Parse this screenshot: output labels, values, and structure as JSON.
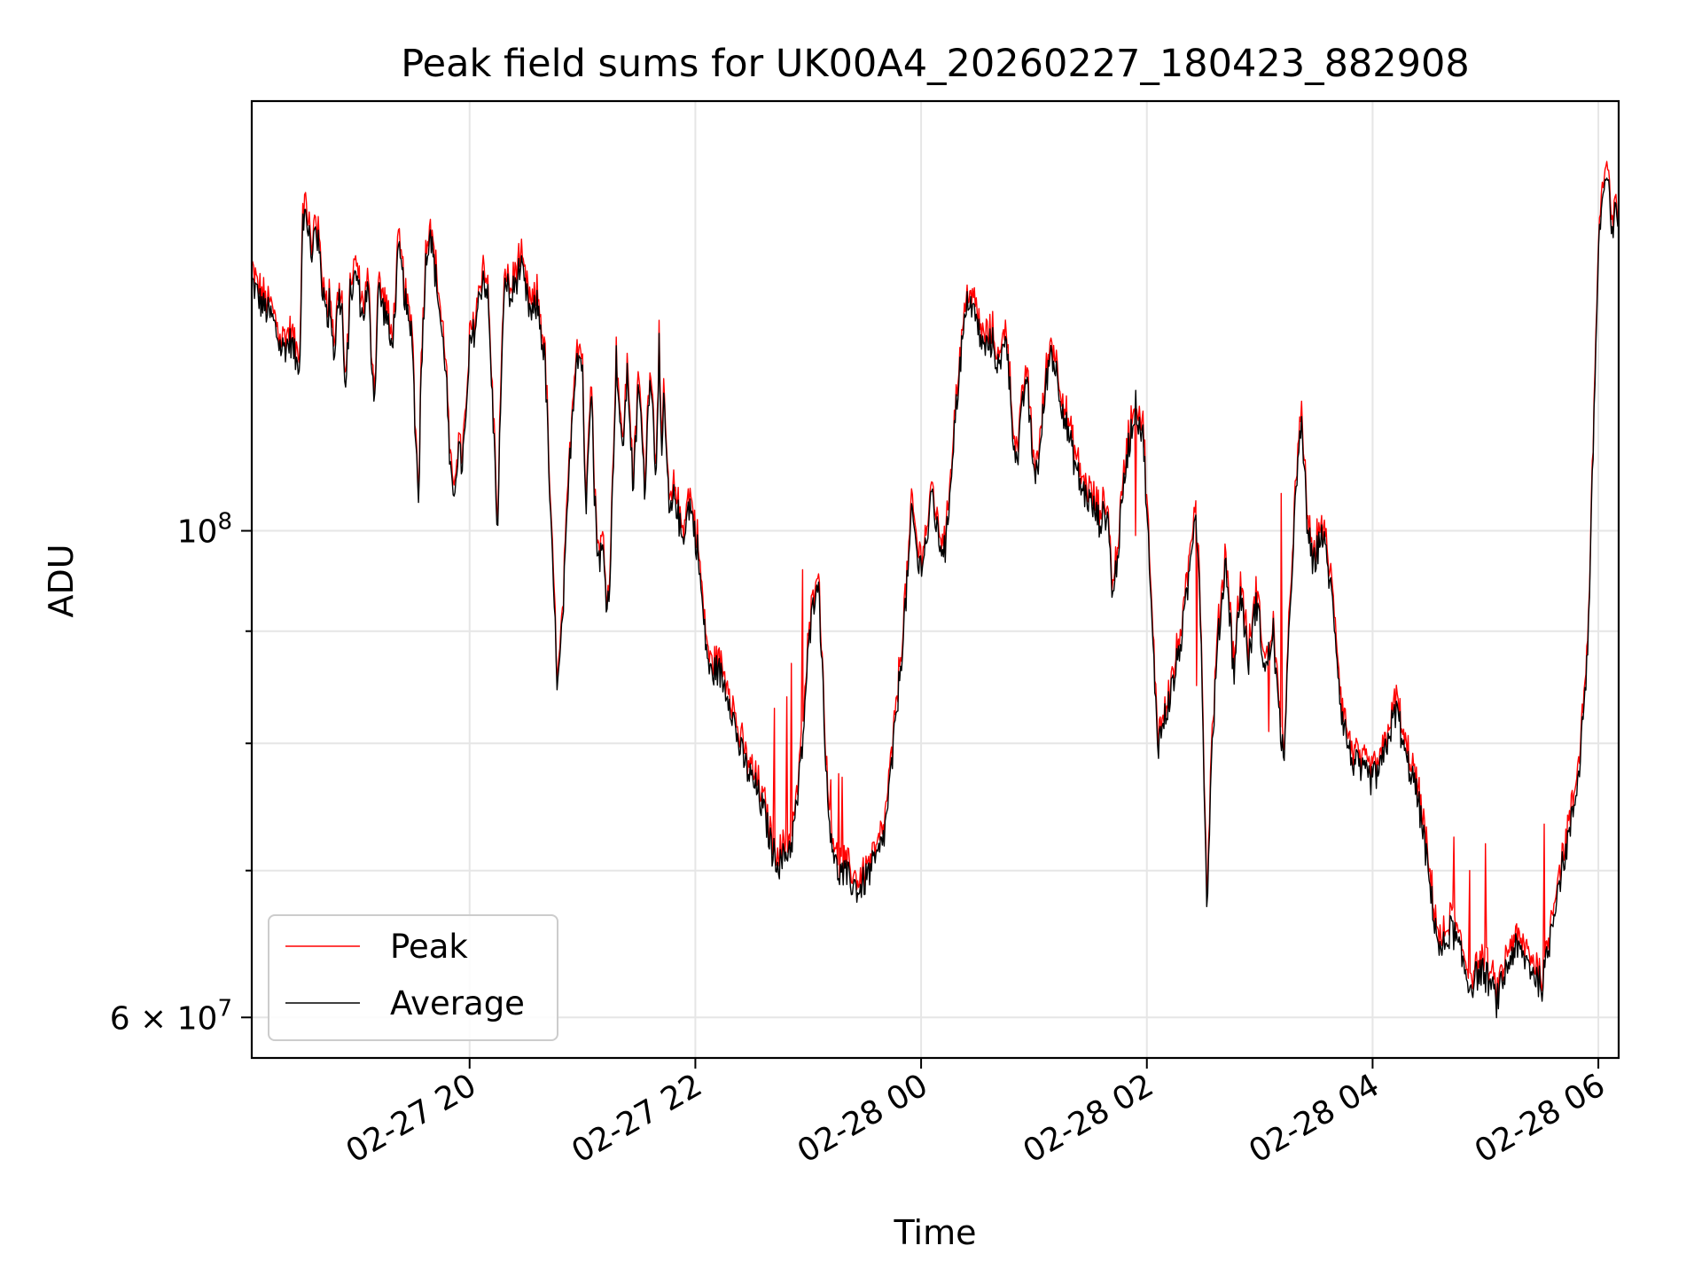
{
  "chart_data": {
    "type": "line",
    "title": "Peak field sums for UK00A4_20260227_180423_882908",
    "xlabel": "Time",
    "ylabel": "ADU",
    "yscale": "log",
    "xlim_hours": [
      18.07,
      30.18
    ],
    "ylim": [
      57500000,
      157000000
    ],
    "x_ticks": [
      {
        "hour": 20,
        "label": "02-27 20"
      },
      {
        "hour": 22,
        "label": "02-27 22"
      },
      {
        "hour": 24,
        "label": "02-28 00"
      },
      {
        "hour": 26,
        "label": "02-28 02"
      },
      {
        "hour": 28,
        "label": "02-28 04"
      },
      {
        "hour": 30,
        "label": "02-28 06"
      }
    ],
    "y_major_ticks": [
      {
        "value": 100000000,
        "base": "10",
        "exp": "8"
      },
      {
        "value": 60000000,
        "base": "6 × 10",
        "exp": "7"
      }
    ],
    "y_minor_ticks": [
      70000000,
      80000000,
      90000000
    ],
    "grid": true,
    "legend_position": "lower-left",
    "series": [
      {
        "name": "Peak",
        "color": "#ff0000",
        "spikes": [
          [
            22.7,
            83.0
          ],
          [
            22.81,
            84.0
          ],
          [
            22.95,
            96.0
          ],
          [
            23.27,
            77.5
          ],
          [
            23.2,
            77.0
          ],
          [
            25.9,
            99.5
          ],
          [
            27.08,
            81.0
          ],
          [
            26.44,
            85.0
          ],
          [
            28.72,
            72.5
          ],
          [
            29.0,
            72.0
          ],
          [
            22.85,
            87.0
          ],
          [
            28.86,
            70.0
          ],
          [
            27.19,
            104.0
          ],
          [
            29.52,
            73.5
          ],
          [
            23.3,
            77.2
          ]
        ]
      },
      {
        "name": "Average",
        "color": "#000000",
        "anchors": [
          [
            18.07,
            130.0
          ],
          [
            18.15,
            127.0
          ],
          [
            18.25,
            125.0
          ],
          [
            18.33,
            121.0
          ],
          [
            18.42,
            122.0
          ],
          [
            18.47,
            119.0
          ],
          [
            18.5,
            120.5
          ],
          [
            18.52,
            140.0
          ],
          [
            18.58,
            137.0
          ],
          [
            18.6,
            131.0
          ],
          [
            18.63,
            139.0
          ],
          [
            18.68,
            132.0
          ],
          [
            18.7,
            128.0
          ],
          [
            18.72,
            129.5
          ],
          [
            18.74,
            123.0
          ],
          [
            18.76,
            128.0
          ],
          [
            18.8,
            120.0
          ],
          [
            18.84,
            128.0
          ],
          [
            18.87,
            126.0
          ],
          [
            18.9,
            114.0
          ],
          [
            18.94,
            128.0
          ],
          [
            18.96,
            129.0
          ],
          [
            19.0,
            131.0
          ],
          [
            19.05,
            125.0
          ],
          [
            19.1,
            129.0
          ],
          [
            19.13,
            120.0
          ],
          [
            19.16,
            115.0
          ],
          [
            19.19,
            129.0
          ],
          [
            19.23,
            126.5
          ],
          [
            19.27,
            125.0
          ],
          [
            19.3,
            121.0
          ],
          [
            19.33,
            124.0
          ],
          [
            19.37,
            134.0
          ],
          [
            19.41,
            130.0
          ],
          [
            19.44,
            126.0
          ],
          [
            19.47,
            123.0
          ],
          [
            19.49,
            124.0
          ],
          [
            19.52,
            110.0
          ],
          [
            19.55,
            104.0
          ],
          [
            19.57,
            118.0
          ],
          [
            19.61,
            132.0
          ],
          [
            19.65,
            138.0
          ],
          [
            19.67,
            134.0
          ],
          [
            19.72,
            128.0
          ],
          [
            19.76,
            122.0
          ],
          [
            19.79,
            119.0
          ],
          [
            19.82,
            108.0
          ],
          [
            19.85,
            103.0
          ],
          [
            19.9,
            109.0
          ],
          [
            19.93,
            107.0
          ],
          [
            19.97,
            112.0
          ],
          [
            20.0,
            121.0
          ],
          [
            20.05,
            124.0
          ],
          [
            20.08,
            127.0
          ],
          [
            20.12,
            131.0
          ],
          [
            20.16,
            128.0
          ],
          [
            20.2,
            115.0
          ],
          [
            20.25,
            99.5
          ],
          [
            20.28,
            118.0
          ],
          [
            20.32,
            131.0
          ],
          [
            20.36,
            127.0
          ],
          [
            20.4,
            129.5
          ],
          [
            20.45,
            132.0
          ],
          [
            20.5,
            128.0
          ],
          [
            20.55,
            125.0
          ],
          [
            20.6,
            127.0
          ],
          [
            20.67,
            119.0
          ],
          [
            20.72,
            100.0
          ],
          [
            20.78,
            84.5
          ],
          [
            20.82,
            90.0
          ],
          [
            20.86,
            100.0
          ],
          [
            20.9,
            111.0
          ],
          [
            20.95,
            121.0
          ],
          [
            21.0,
            119.0
          ],
          [
            21.03,
            100.0
          ],
          [
            21.05,
            110.0
          ],
          [
            21.08,
            118.0
          ],
          [
            21.1,
            105.0
          ],
          [
            21.14,
            97.0
          ],
          [
            21.18,
            98.0
          ],
          [
            21.22,
            92.0
          ],
          [
            21.25,
            97.0
          ],
          [
            21.3,
            120.0
          ],
          [
            21.35,
            108.0
          ],
          [
            21.4,
            118.0
          ],
          [
            21.45,
            104.0
          ],
          [
            21.5,
            117.0
          ],
          [
            21.55,
            104.0
          ],
          [
            21.6,
            119.0
          ],
          [
            21.65,
            106.0
          ],
          [
            21.68,
            122.0
          ],
          [
            21.7,
            105.0
          ],
          [
            21.72,
            115.0
          ],
          [
            21.77,
            101.0
          ],
          [
            21.82,
            104.0
          ],
          [
            21.88,
            99.0
          ],
          [
            21.95,
            103.0
          ],
          [
            22.02,
            98.0
          ],
          [
            22.08,
            90.0
          ],
          [
            22.13,
            86.0
          ],
          [
            22.2,
            86.5
          ],
          [
            22.3,
            84.0
          ],
          [
            22.38,
            80.0
          ],
          [
            22.45,
            78.0
          ],
          [
            22.55,
            76.0
          ],
          [
            22.62,
            74.0
          ],
          [
            22.68,
            71.5
          ],
          [
            22.75,
            70.5
          ],
          [
            22.85,
            72.0
          ],
          [
            22.9,
            75.0
          ],
          [
            22.95,
            80.0
          ],
          [
            23.0,
            88.0
          ],
          [
            23.08,
            96.0
          ],
          [
            23.12,
            88.0
          ],
          [
            23.17,
            75.0
          ],
          [
            23.25,
            70.0
          ],
          [
            23.35,
            69.5
          ],
          [
            23.45,
            68.5
          ],
          [
            23.55,
            70.0
          ],
          [
            23.62,
            71.0
          ],
          [
            23.68,
            73.0
          ],
          [
            23.75,
            79.0
          ],
          [
            23.82,
            87.0
          ],
          [
            23.88,
            95.0
          ],
          [
            23.92,
            102.0
          ],
          [
            23.98,
            96.0
          ],
          [
            24.05,
            99.0
          ],
          [
            24.1,
            104.0
          ],
          [
            24.15,
            99.0
          ],
          [
            24.22,
            98.0
          ],
          [
            24.28,
            109.0
          ],
          [
            24.35,
            120.0
          ],
          [
            24.42,
            128.0
          ],
          [
            24.5,
            124.0
          ],
          [
            24.55,
            121.0
          ],
          [
            24.63,
            122.0
          ],
          [
            24.7,
            118.0
          ],
          [
            24.75,
            124.0
          ],
          [
            24.8,
            113.0
          ],
          [
            24.85,
            107.0
          ],
          [
            24.93,
            118.0
          ],
          [
            25.0,
            106.0
          ],
          [
            25.05,
            108.0
          ],
          [
            25.1,
            116.0
          ],
          [
            25.15,
            121.0
          ],
          [
            25.2,
            118.0
          ],
          [
            25.28,
            112.0
          ],
          [
            25.35,
            108.0
          ],
          [
            25.42,
            104.5
          ],
          [
            25.5,
            103.0
          ],
          [
            25.58,
            101.0
          ],
          [
            25.65,
            102.0
          ],
          [
            25.7,
            93.0
          ],
          [
            25.76,
            100.0
          ],
          [
            25.82,
            108.0
          ],
          [
            25.9,
            114.0
          ],
          [
            25.97,
            110.0
          ],
          [
            26.05,
            89.0
          ],
          [
            26.1,
            80.0
          ],
          [
            26.18,
            83.0
          ],
          [
            26.25,
            86.0
          ],
          [
            26.33,
            91.0
          ],
          [
            26.38,
            96.0
          ],
          [
            26.43,
            103.0
          ],
          [
            26.47,
            94.0
          ],
          [
            26.53,
            67.0
          ],
          [
            26.58,
            80.0
          ],
          [
            26.63,
            89.0
          ],
          [
            26.7,
            97.0
          ],
          [
            26.77,
            86.0
          ],
          [
            26.83,
            94.0
          ],
          [
            26.9,
            87.0
          ],
          [
            26.97,
            93.0
          ],
          [
            27.05,
            86.0
          ],
          [
            27.12,
            90.0
          ],
          [
            27.17,
            82.0
          ],
          [
            27.22,
            79.0
          ],
          [
            27.3,
            100.0
          ],
          [
            27.37,
            112.0
          ],
          [
            27.42,
            101.0
          ],
          [
            27.47,
            96.0
          ],
          [
            27.55,
            100.0
          ],
          [
            27.62,
            95.0
          ],
          [
            27.67,
            90.0
          ],
          [
            27.72,
            83.0
          ],
          [
            27.8,
            79.0
          ],
          [
            27.9,
            77.5
          ],
          [
            28.0,
            77.0
          ],
          [
            28.08,
            78.0
          ],
          [
            28.15,
            81.0
          ],
          [
            28.22,
            83.0
          ],
          [
            28.28,
            79.0
          ],
          [
            28.35,
            77.5
          ],
          [
            28.43,
            74.0
          ],
          [
            28.52,
            68.0
          ],
          [
            28.6,
            64.0
          ],
          [
            28.7,
            66.0
          ],
          [
            28.78,
            64.0
          ],
          [
            28.86,
            62.0
          ],
          [
            28.95,
            63.0
          ],
          [
            29.02,
            62.5
          ],
          [
            29.1,
            61.0
          ],
          [
            29.18,
            63.0
          ],
          [
            29.25,
            64.5
          ],
          [
            29.33,
            64.0
          ],
          [
            29.42,
            63.0
          ],
          [
            29.5,
            62.0
          ],
          [
            29.55,
            64.0
          ],
          [
            29.62,
            68.0
          ],
          [
            29.7,
            71.0
          ],
          [
            29.77,
            74.0
          ],
          [
            29.83,
            78.0
          ],
          [
            29.9,
            87.0
          ],
          [
            29.93,
            97.0
          ],
          [
            29.97,
            117.0
          ],
          [
            30.0,
            134.0
          ],
          [
            30.03,
            141.0
          ],
          [
            30.07,
            145.0
          ],
          [
            30.1,
            141.0
          ],
          [
            30.13,
            134.0
          ],
          [
            30.15,
            142.0
          ],
          [
            30.18,
            138.0
          ]
        ]
      }
    ]
  }
}
